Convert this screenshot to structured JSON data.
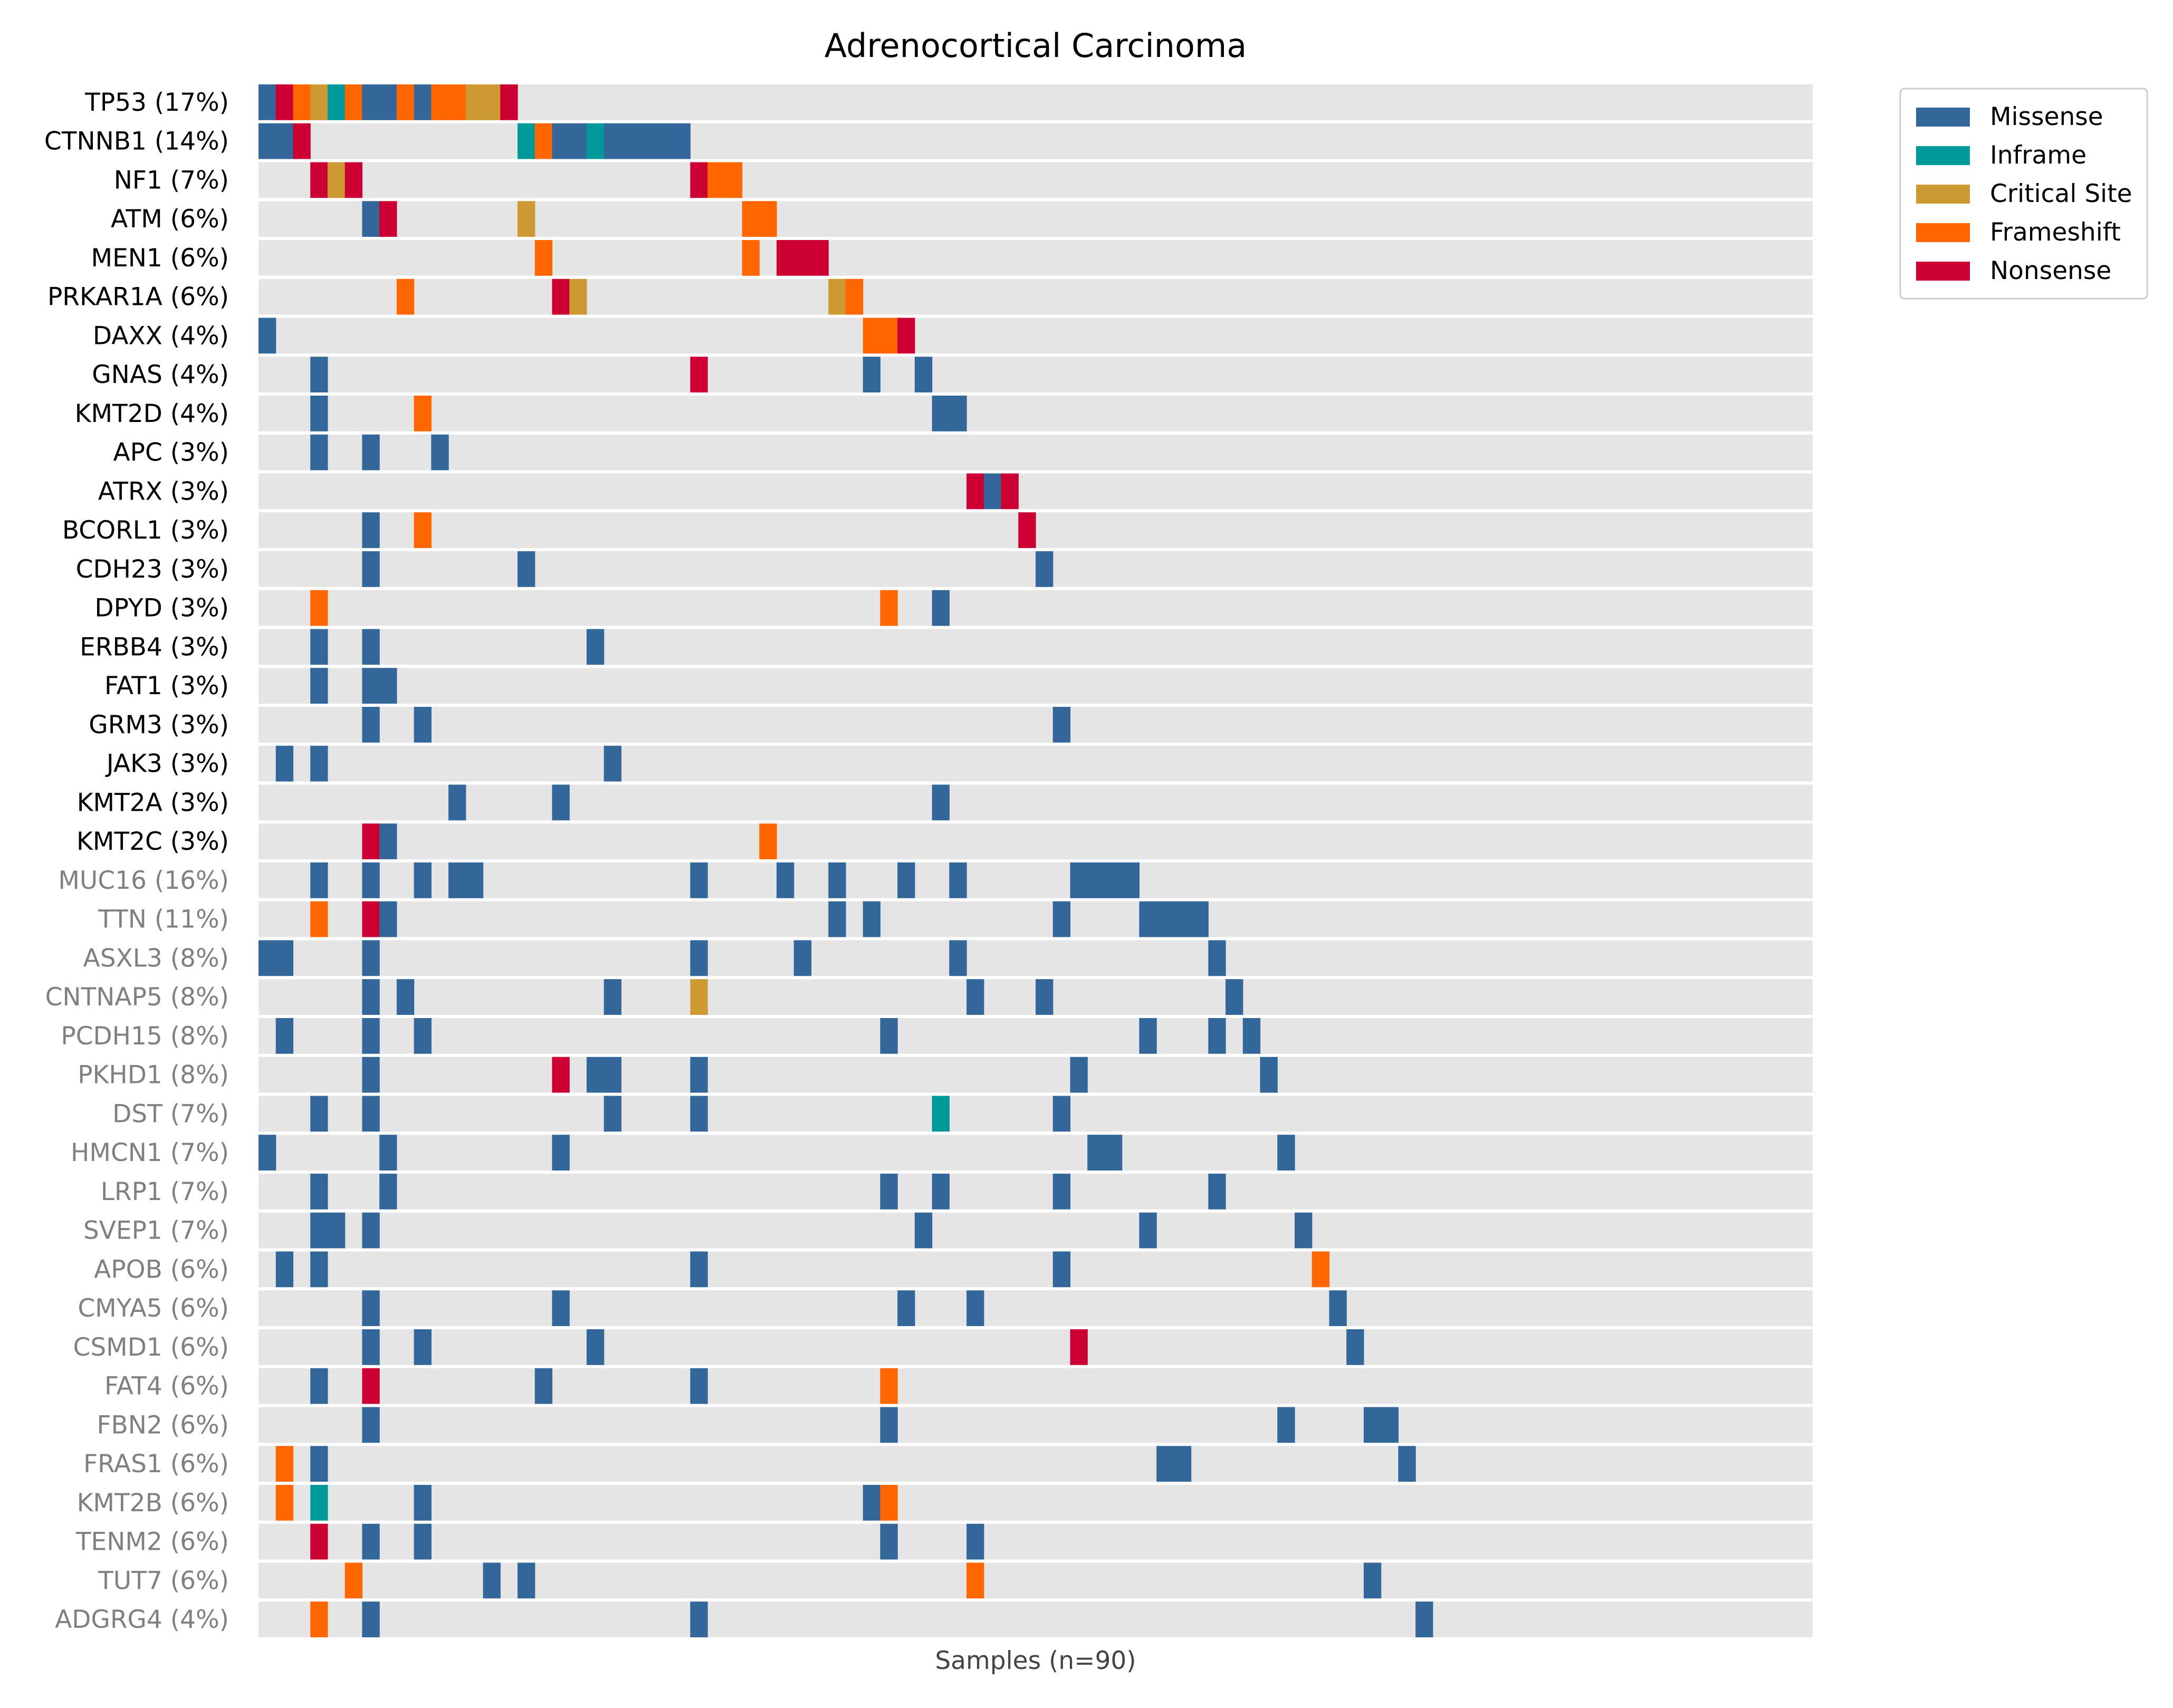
{
  "chart_data": {
    "type": "heatmap",
    "subtype": "oncoprint",
    "title": "Adrenocortical Carcinoma",
    "xlabel": "Samples (n=90)",
    "n_samples": 90,
    "colors": {
      "Missense": "#336699",
      "Inframe": "#009999",
      "Critical Site": "#cc9933",
      "Frameshift": "#ff6600",
      "Nonsense": "#cc0033",
      "background": "#e5e5e5",
      "label_primary": "#000000",
      "label_secondary": "#808080"
    },
    "legend": {
      "position": "top-right",
      "entries": [
        "Missense",
        "Inframe",
        "Critical Site",
        "Frameshift",
        "Nonsense"
      ]
    },
    "genes": [
      {
        "label": "TP53 (17%)",
        "group": "primary",
        "cells": [
          [
            0,
            "Missense"
          ],
          [
            1,
            "Nonsense"
          ],
          [
            2,
            "Frameshift"
          ],
          [
            3,
            "Critical Site"
          ],
          [
            4,
            "Inframe"
          ],
          [
            5,
            "Frameshift"
          ],
          [
            6,
            "Missense"
          ],
          [
            7,
            "Missense"
          ],
          [
            8,
            "Frameshift"
          ],
          [
            9,
            "Missense"
          ],
          [
            10,
            "Frameshift"
          ],
          [
            11,
            "Frameshift"
          ],
          [
            12,
            "Critical Site"
          ],
          [
            13,
            "Critical Site"
          ],
          [
            14,
            "Nonsense"
          ]
        ]
      },
      {
        "label": "CTNNB1 (14%)",
        "group": "primary",
        "cells": [
          [
            0,
            "Missense"
          ],
          [
            1,
            "Missense"
          ],
          [
            2,
            "Nonsense"
          ],
          [
            15,
            "Inframe"
          ],
          [
            16,
            "Frameshift"
          ],
          [
            17,
            "Missense"
          ],
          [
            18,
            "Missense"
          ],
          [
            19,
            "Inframe"
          ],
          [
            20,
            "Missense"
          ],
          [
            21,
            "Missense"
          ],
          [
            22,
            "Missense"
          ],
          [
            23,
            "Missense"
          ],
          [
            24,
            "Missense"
          ]
        ]
      },
      {
        "label": "NF1 (7%)",
        "group": "primary",
        "cells": [
          [
            3,
            "Nonsense"
          ],
          [
            4,
            "Critical Site"
          ],
          [
            5,
            "Nonsense"
          ],
          [
            25,
            "Nonsense"
          ],
          [
            26,
            "Frameshift"
          ],
          [
            27,
            "Frameshift"
          ]
        ]
      },
      {
        "label": "ATM (6%)",
        "group": "primary",
        "cells": [
          [
            6,
            "Missense"
          ],
          [
            7,
            "Nonsense"
          ],
          [
            15,
            "Critical Site"
          ],
          [
            28,
            "Frameshift"
          ],
          [
            29,
            "Frameshift"
          ]
        ]
      },
      {
        "label": "MEN1 (6%)",
        "group": "primary",
        "cells": [
          [
            16,
            "Frameshift"
          ],
          [
            28,
            "Frameshift"
          ],
          [
            30,
            "Nonsense"
          ],
          [
            31,
            "Nonsense"
          ],
          [
            32,
            "Nonsense"
          ]
        ]
      },
      {
        "label": "PRKAR1A (6%)",
        "group": "primary",
        "cells": [
          [
            8,
            "Frameshift"
          ],
          [
            17,
            "Nonsense"
          ],
          [
            18,
            "Critical Site"
          ],
          [
            33,
            "Critical Site"
          ],
          [
            34,
            "Frameshift"
          ]
        ]
      },
      {
        "label": "DAXX (4%)",
        "group": "primary",
        "cells": [
          [
            0,
            "Missense"
          ],
          [
            35,
            "Frameshift"
          ],
          [
            36,
            "Frameshift"
          ],
          [
            37,
            "Nonsense"
          ]
        ]
      },
      {
        "label": "GNAS (4%)",
        "group": "primary",
        "cells": [
          [
            3,
            "Missense"
          ],
          [
            25,
            "Nonsense"
          ],
          [
            35,
            "Missense"
          ],
          [
            38,
            "Missense"
          ]
        ]
      },
      {
        "label": "KMT2D (4%)",
        "group": "primary",
        "cells": [
          [
            3,
            "Missense"
          ],
          [
            9,
            "Frameshift"
          ],
          [
            39,
            "Missense"
          ],
          [
            40,
            "Missense"
          ]
        ]
      },
      {
        "label": "APC (3%)",
        "group": "primary",
        "cells": [
          [
            3,
            "Missense"
          ],
          [
            6,
            "Missense"
          ],
          [
            10,
            "Missense"
          ]
        ]
      },
      {
        "label": "ATRX (3%)",
        "group": "primary",
        "cells": [
          [
            41,
            "Nonsense"
          ],
          [
            42,
            "Missense"
          ],
          [
            43,
            "Nonsense"
          ]
        ]
      },
      {
        "label": "BCORL1 (3%)",
        "group": "primary",
        "cells": [
          [
            6,
            "Missense"
          ],
          [
            9,
            "Frameshift"
          ],
          [
            44,
            "Nonsense"
          ]
        ]
      },
      {
        "label": "CDH23 (3%)",
        "group": "primary",
        "cells": [
          [
            6,
            "Missense"
          ],
          [
            15,
            "Missense"
          ],
          [
            45,
            "Missense"
          ]
        ]
      },
      {
        "label": "DPYD (3%)",
        "group": "primary",
        "cells": [
          [
            3,
            "Frameshift"
          ],
          [
            36,
            "Frameshift"
          ],
          [
            39,
            "Missense"
          ]
        ]
      },
      {
        "label": "ERBB4 (3%)",
        "group": "primary",
        "cells": [
          [
            3,
            "Missense"
          ],
          [
            6,
            "Missense"
          ],
          [
            19,
            "Missense"
          ]
        ]
      },
      {
        "label": "FAT1 (3%)",
        "group": "primary",
        "cells": [
          [
            3,
            "Missense"
          ],
          [
            6,
            "Missense"
          ],
          [
            7,
            "Missense"
          ]
        ]
      },
      {
        "label": "GRM3 (3%)",
        "group": "primary",
        "cells": [
          [
            6,
            "Missense"
          ],
          [
            9,
            "Missense"
          ],
          [
            46,
            "Missense"
          ]
        ]
      },
      {
        "label": "JAK3 (3%)",
        "group": "primary",
        "cells": [
          [
            1,
            "Missense"
          ],
          [
            3,
            "Missense"
          ],
          [
            20,
            "Missense"
          ]
        ]
      },
      {
        "label": "KMT2A (3%)",
        "group": "primary",
        "cells": [
          [
            11,
            "Missense"
          ],
          [
            17,
            "Missense"
          ],
          [
            39,
            "Missense"
          ]
        ]
      },
      {
        "label": "KMT2C (3%)",
        "group": "primary",
        "cells": [
          [
            6,
            "Nonsense"
          ],
          [
            7,
            "Missense"
          ],
          [
            29,
            "Frameshift"
          ]
        ]
      },
      {
        "label": "MUC16 (16%)",
        "group": "secondary",
        "cells": [
          [
            3,
            "Missense"
          ],
          [
            6,
            "Missense"
          ],
          [
            9,
            "Missense"
          ],
          [
            11,
            "Missense"
          ],
          [
            12,
            "Missense"
          ],
          [
            25,
            "Missense"
          ],
          [
            30,
            "Missense"
          ],
          [
            33,
            "Missense"
          ],
          [
            37,
            "Missense"
          ],
          [
            40,
            "Missense"
          ],
          [
            47,
            "Missense"
          ],
          [
            48,
            "Missense"
          ],
          [
            49,
            "Missense"
          ],
          [
            50,
            "Missense"
          ]
        ]
      },
      {
        "label": "TTN (11%)",
        "group": "secondary",
        "cells": [
          [
            3,
            "Frameshift"
          ],
          [
            6,
            "Nonsense"
          ],
          [
            7,
            "Missense"
          ],
          [
            33,
            "Missense"
          ],
          [
            35,
            "Missense"
          ],
          [
            46,
            "Missense"
          ],
          [
            51,
            "Missense"
          ],
          [
            52,
            "Missense"
          ],
          [
            53,
            "Missense"
          ],
          [
            54,
            "Missense"
          ]
        ]
      },
      {
        "label": "ASXL3 (8%)",
        "group": "secondary",
        "cells": [
          [
            0,
            "Missense"
          ],
          [
            1,
            "Missense"
          ],
          [
            6,
            "Missense"
          ],
          [
            25,
            "Missense"
          ],
          [
            31,
            "Missense"
          ],
          [
            40,
            "Missense"
          ],
          [
            55,
            "Missense"
          ]
        ]
      },
      {
        "label": "CNTNAP5 (8%)",
        "group": "secondary",
        "cells": [
          [
            6,
            "Missense"
          ],
          [
            8,
            "Missense"
          ],
          [
            20,
            "Missense"
          ],
          [
            25,
            "Critical Site"
          ],
          [
            41,
            "Missense"
          ],
          [
            45,
            "Missense"
          ],
          [
            56,
            "Missense"
          ]
        ]
      },
      {
        "label": "PCDH15 (8%)",
        "group": "secondary",
        "cells": [
          [
            1,
            "Missense"
          ],
          [
            6,
            "Missense"
          ],
          [
            9,
            "Missense"
          ],
          [
            36,
            "Missense"
          ],
          [
            51,
            "Missense"
          ],
          [
            55,
            "Missense"
          ],
          [
            57,
            "Missense"
          ]
        ]
      },
      {
        "label": "PKHD1 (8%)",
        "group": "secondary",
        "cells": [
          [
            6,
            "Missense"
          ],
          [
            17,
            "Nonsense"
          ],
          [
            19,
            "Missense"
          ],
          [
            20,
            "Missense"
          ],
          [
            25,
            "Missense"
          ],
          [
            47,
            "Missense"
          ],
          [
            58,
            "Missense"
          ]
        ]
      },
      {
        "label": "DST (7%)",
        "group": "secondary",
        "cells": [
          [
            3,
            "Missense"
          ],
          [
            6,
            "Missense"
          ],
          [
            20,
            "Missense"
          ],
          [
            25,
            "Missense"
          ],
          [
            39,
            "Inframe"
          ],
          [
            46,
            "Missense"
          ]
        ]
      },
      {
        "label": "HMCN1 (7%)",
        "group": "secondary",
        "cells": [
          [
            0,
            "Missense"
          ],
          [
            7,
            "Missense"
          ],
          [
            17,
            "Missense"
          ],
          [
            48,
            "Missense"
          ],
          [
            49,
            "Missense"
          ],
          [
            59,
            "Missense"
          ]
        ]
      },
      {
        "label": "LRP1 (7%)",
        "group": "secondary",
        "cells": [
          [
            3,
            "Missense"
          ],
          [
            7,
            "Missense"
          ],
          [
            36,
            "Missense"
          ],
          [
            39,
            "Missense"
          ],
          [
            46,
            "Missense"
          ],
          [
            55,
            "Missense"
          ]
        ]
      },
      {
        "label": "SVEP1 (7%)",
        "group": "secondary",
        "cells": [
          [
            3,
            "Missense"
          ],
          [
            4,
            "Missense"
          ],
          [
            6,
            "Missense"
          ],
          [
            38,
            "Missense"
          ],
          [
            51,
            "Missense"
          ],
          [
            60,
            "Missense"
          ]
        ]
      },
      {
        "label": "APOB (6%)",
        "group": "secondary",
        "cells": [
          [
            1,
            "Missense"
          ],
          [
            3,
            "Missense"
          ],
          [
            25,
            "Missense"
          ],
          [
            46,
            "Missense"
          ],
          [
            61,
            "Frameshift"
          ]
        ]
      },
      {
        "label": "CMYA5 (6%)",
        "group": "secondary",
        "cells": [
          [
            6,
            "Missense"
          ],
          [
            17,
            "Missense"
          ],
          [
            37,
            "Missense"
          ],
          [
            41,
            "Missense"
          ],
          [
            62,
            "Missense"
          ]
        ]
      },
      {
        "label": "CSMD1 (6%)",
        "group": "secondary",
        "cells": [
          [
            6,
            "Missense"
          ],
          [
            9,
            "Missense"
          ],
          [
            19,
            "Missense"
          ],
          [
            47,
            "Nonsense"
          ],
          [
            63,
            "Missense"
          ]
        ]
      },
      {
        "label": "FAT4 (6%)",
        "group": "secondary",
        "cells": [
          [
            3,
            "Missense"
          ],
          [
            6,
            "Nonsense"
          ],
          [
            16,
            "Missense"
          ],
          [
            25,
            "Missense"
          ],
          [
            36,
            "Frameshift"
          ]
        ]
      },
      {
        "label": "FBN2 (6%)",
        "group": "secondary",
        "cells": [
          [
            6,
            "Missense"
          ],
          [
            36,
            "Missense"
          ],
          [
            59,
            "Missense"
          ],
          [
            64,
            "Missense"
          ],
          [
            65,
            "Missense"
          ]
        ]
      },
      {
        "label": "FRAS1 (6%)",
        "group": "secondary",
        "cells": [
          [
            1,
            "Frameshift"
          ],
          [
            3,
            "Missense"
          ],
          [
            52,
            "Missense"
          ],
          [
            53,
            "Missense"
          ],
          [
            66,
            "Missense"
          ]
        ]
      },
      {
        "label": "KMT2B (6%)",
        "group": "secondary",
        "cells": [
          [
            1,
            "Frameshift"
          ],
          [
            3,
            "Inframe"
          ],
          [
            9,
            "Missense"
          ],
          [
            35,
            "Missense"
          ],
          [
            36,
            "Frameshift"
          ]
        ]
      },
      {
        "label": "TENM2 (6%)",
        "group": "secondary",
        "cells": [
          [
            3,
            "Nonsense"
          ],
          [
            6,
            "Missense"
          ],
          [
            9,
            "Missense"
          ],
          [
            36,
            "Missense"
          ],
          [
            41,
            "Missense"
          ]
        ]
      },
      {
        "label": "TUT7 (6%)",
        "group": "secondary",
        "cells": [
          [
            5,
            "Frameshift"
          ],
          [
            13,
            "Missense"
          ],
          [
            15,
            "Missense"
          ],
          [
            41,
            "Frameshift"
          ],
          [
            64,
            "Missense"
          ]
        ]
      },
      {
        "label": "ADGRG4 (4%)",
        "group": "secondary",
        "cells": [
          [
            3,
            "Frameshift"
          ],
          [
            6,
            "Missense"
          ],
          [
            25,
            "Missense"
          ],
          [
            67,
            "Missense"
          ]
        ]
      }
    ]
  }
}
